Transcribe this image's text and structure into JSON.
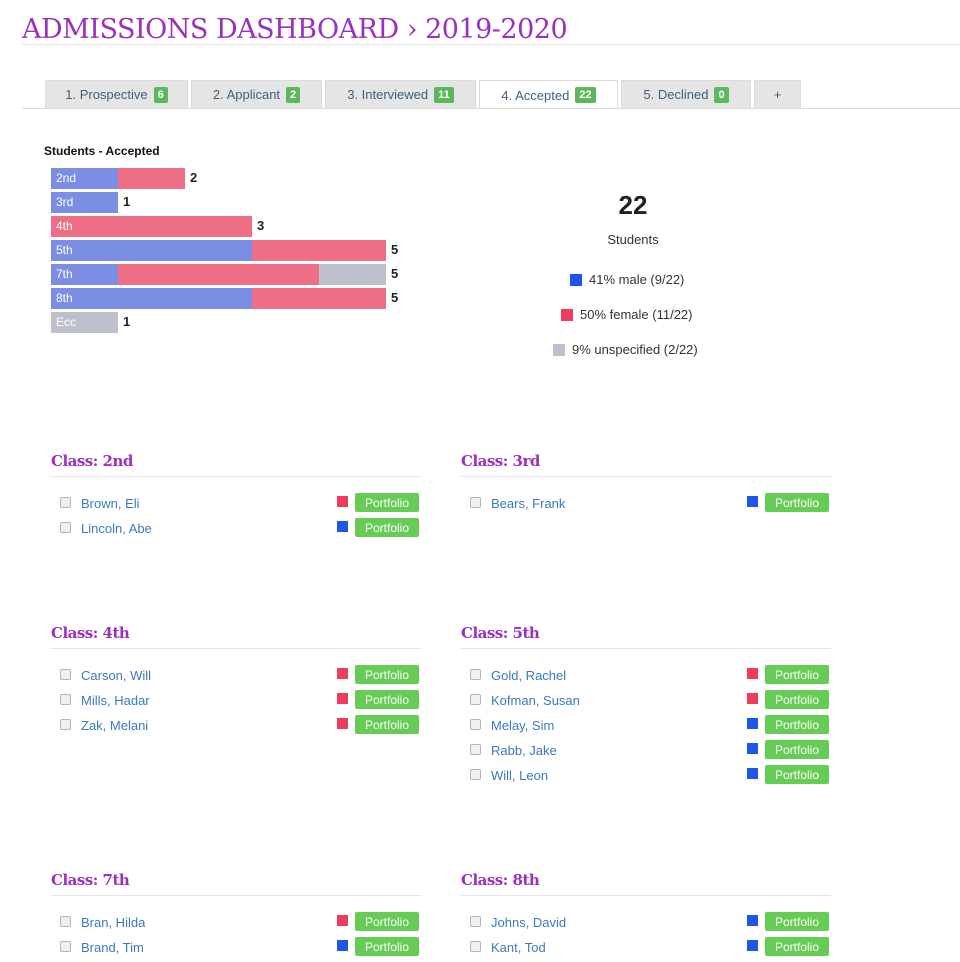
{
  "header": {
    "title": "ADMISSIONS DASHBOARD › 2019-2020"
  },
  "tabs": [
    {
      "label": "1. Prospective",
      "count": "6",
      "active": false
    },
    {
      "label": "2. Applicant",
      "count": "2",
      "active": false
    },
    {
      "label": "3. Interviewed",
      "count": "11",
      "active": false
    },
    {
      "label": "4. Accepted",
      "count": "22",
      "active": true
    },
    {
      "label": "5. Declined",
      "count": "0",
      "active": false
    },
    {
      "label": "+",
      "count": "",
      "active": false
    }
  ],
  "colors": {
    "male": "#7b8ee3",
    "female": "#ee6e86",
    "unspecified": "#bfc0ce",
    "male_swatch": "#1f56e8",
    "female_swatch": "#ee3c5f",
    "unspecified_swatch": "#bfc0ce",
    "accent": "#9b2fbf",
    "portfolio": "#66cc55"
  },
  "chart_data": {
    "type": "bar",
    "orientation": "horizontal",
    "stacked": true,
    "title": "Students - Accepted",
    "categories": [
      "2nd",
      "3rd",
      "4th",
      "5th",
      "7th",
      "8th",
      "Ecc"
    ],
    "series": [
      {
        "name": "male",
        "values": [
          1,
          1,
          0,
          3,
          1,
          3,
          0
        ]
      },
      {
        "name": "female",
        "values": [
          1,
          0,
          3,
          2,
          3,
          2,
          0
        ]
      },
      {
        "name": "unspecified",
        "values": [
          0,
          0,
          0,
          0,
          1,
          0,
          1
        ]
      }
    ],
    "totals": [
      2,
      1,
      3,
      5,
      5,
      5,
      1
    ],
    "xlim": [
      0,
      5
    ],
    "grid": false
  },
  "summary": {
    "count": "22",
    "label": "Students",
    "legend": [
      {
        "key": "male",
        "text": "41% male (9/22)"
      },
      {
        "key": "female",
        "text": "50% female (11/22)"
      },
      {
        "key": "unspecified",
        "text": "9% unspecified (2/22)"
      }
    ]
  },
  "classes": [
    {
      "title": "Class: 2nd",
      "students": [
        {
          "name": "Brown, Eli",
          "gender": "female",
          "button": "Portfolio"
        },
        {
          "name": "Lincoln, Abe",
          "gender": "male",
          "button": "Portfolio"
        }
      ]
    },
    {
      "title": "Class: 3rd",
      "students": [
        {
          "name": "Bears, Frank",
          "gender": "male",
          "button": "Portfolio"
        }
      ]
    },
    {
      "title": "Class: 4th",
      "students": [
        {
          "name": "Carson, Will",
          "gender": "female",
          "button": "Portfolio"
        },
        {
          "name": "Mills, Hadar",
          "gender": "female",
          "button": "Portfolio"
        },
        {
          "name": "Zak, Melani",
          "gender": "female",
          "button": "Portfolio"
        }
      ]
    },
    {
      "title": "Class: 5th",
      "students": [
        {
          "name": "Gold, Rachel",
          "gender": "female",
          "button": "Portfolio"
        },
        {
          "name": "Kofman, Susan",
          "gender": "female",
          "button": "Portfolio"
        },
        {
          "name": "Melay, Sim",
          "gender": "male",
          "button": "Portfolio"
        },
        {
          "name": "Rabb, Jake",
          "gender": "male",
          "button": "Portfolio"
        },
        {
          "name": "Will, Leon",
          "gender": "male",
          "button": "Portfolio"
        }
      ]
    },
    {
      "title": "Class: 7th",
      "students": [
        {
          "name": "Bran, Hilda",
          "gender": "female",
          "button": "Portfolio"
        },
        {
          "name": "Brand, Tim",
          "gender": "male",
          "button": "Portfolio"
        }
      ]
    },
    {
      "title": "Class: 8th",
      "students": [
        {
          "name": "Johns, David",
          "gender": "male",
          "button": "Portfolio"
        },
        {
          "name": "Kant, Tod",
          "gender": "male",
          "button": "Portfolio"
        }
      ]
    }
  ]
}
